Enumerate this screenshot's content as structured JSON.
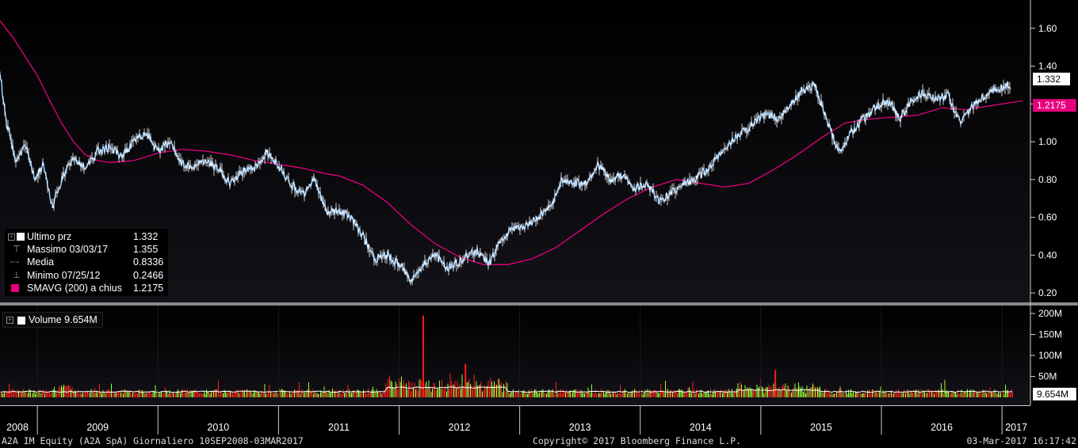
{
  "chart_data": [
    {
      "type": "line",
      "title": "",
      "ylim": [
        0.15,
        1.75
      ],
      "y_ticks": [
        "0.20",
        "0.40",
        "0.60",
        "0.80",
        "1.00",
        "1.20",
        "1.40",
        "1.60"
      ],
      "x_domain": [
        2008.69,
        2017.17
      ],
      "series": [
        {
          "name": "Ultimo prz",
          "color": "#ffffff",
          "x": [
            2008.69,
            2008.75,
            2008.82,
            2008.9,
            2008.98,
            2009.05,
            2009.12,
            2009.2,
            2009.3,
            2009.4,
            2009.5,
            2009.6,
            2009.7,
            2009.8,
            2009.9,
            2010.0,
            2010.1,
            2010.2,
            2010.3,
            2010.4,
            2010.5,
            2010.6,
            2010.7,
            2010.8,
            2010.9,
            2011.0,
            2011.1,
            2011.2,
            2011.3,
            2011.4,
            2011.5,
            2011.6,
            2011.7,
            2011.8,
            2011.9,
            2012.0,
            2012.1,
            2012.2,
            2012.3,
            2012.4,
            2012.5,
            2012.56,
            2012.65,
            2012.75,
            2012.85,
            2012.95,
            2013.05,
            2013.15,
            2013.25,
            2013.35,
            2013.45,
            2013.55,
            2013.65,
            2013.75,
            2013.85,
            2013.95,
            2014.05,
            2014.15,
            2014.25,
            2014.35,
            2014.45,
            2014.55,
            2014.65,
            2014.75,
            2014.85,
            2014.95,
            2015.05,
            2015.15,
            2015.25,
            2015.35,
            2015.45,
            2015.55,
            2015.65,
            2015.75,
            2015.85,
            2015.95,
            2016.05,
            2016.15,
            2016.25,
            2016.35,
            2016.45,
            2016.55,
            2016.65,
            2016.75,
            2016.85,
            2016.95,
            2017.05,
            2017.12,
            2017.17
          ],
          "y": [
            1.36,
            1.08,
            0.9,
            0.98,
            0.8,
            0.88,
            0.65,
            0.8,
            0.92,
            0.86,
            0.95,
            0.97,
            0.92,
            1.0,
            1.05,
            0.95,
            1.0,
            0.88,
            0.86,
            0.9,
            0.86,
            0.78,
            0.84,
            0.86,
            0.94,
            0.88,
            0.78,
            0.72,
            0.8,
            0.62,
            0.64,
            0.6,
            0.5,
            0.38,
            0.4,
            0.35,
            0.27,
            0.35,
            0.4,
            0.33,
            0.36,
            0.4,
            0.42,
            0.36,
            0.48,
            0.55,
            0.55,
            0.6,
            0.65,
            0.8,
            0.78,
            0.78,
            0.88,
            0.8,
            0.82,
            0.75,
            0.78,
            0.69,
            0.72,
            0.78,
            0.8,
            0.85,
            0.92,
            1.0,
            1.05,
            1.1,
            1.15,
            1.12,
            1.2,
            1.28,
            1.3,
            1.1,
            0.95,
            1.05,
            1.12,
            1.18,
            1.22,
            1.12,
            1.22,
            1.26,
            1.22,
            1.25,
            1.1,
            1.18,
            1.24,
            1.28,
            1.3,
            1.28,
            1.332
          ]
        },
        {
          "name": "SMAVG (200) a chius",
          "color": "#e6007e",
          "x": [
            2008.69,
            2008.8,
            2008.9,
            2009.0,
            2009.1,
            2009.2,
            2009.3,
            2009.4,
            2009.5,
            2009.6,
            2009.8,
            2010.0,
            2010.2,
            2010.4,
            2010.6,
            2010.8,
            2011.0,
            2011.2,
            2011.4,
            2011.5,
            2011.7,
            2011.9,
            2012.1,
            2012.3,
            2012.5,
            2012.7,
            2012.9,
            2013.1,
            2013.3,
            2013.5,
            2013.7,
            2013.9,
            2014.1,
            2014.3,
            2014.5,
            2014.7,
            2014.9,
            2015.1,
            2015.3,
            2015.5,
            2015.7,
            2015.9,
            2016.1,
            2016.3,
            2016.5,
            2016.7,
            2016.9,
            2017.1,
            2017.17
          ],
          "y": [
            1.64,
            1.55,
            1.45,
            1.35,
            1.22,
            1.1,
            1.0,
            0.93,
            0.9,
            0.89,
            0.9,
            0.94,
            0.96,
            0.95,
            0.93,
            0.9,
            0.88,
            0.86,
            0.83,
            0.82,
            0.77,
            0.68,
            0.56,
            0.46,
            0.39,
            0.35,
            0.35,
            0.38,
            0.44,
            0.53,
            0.62,
            0.7,
            0.76,
            0.8,
            0.78,
            0.76,
            0.78,
            0.85,
            0.93,
            1.02,
            1.1,
            1.12,
            1.13,
            1.14,
            1.18,
            1.17,
            1.19,
            1.21,
            1.2175
          ]
        }
      ],
      "right_labels": [
        {
          "text": "1.332",
          "value": 1.332,
          "bg": "#ffffff",
          "fg": "#000000"
        },
        {
          "text": "1.2175",
          "value": 1.2175,
          "bg": "#e6007e",
          "fg": "#ffffff"
        }
      ]
    },
    {
      "type": "bar",
      "title": "",
      "ylim": [
        0,
        200
      ],
      "y_ticks": [
        "50M",
        "100M",
        "150M",
        "200M"
      ],
      "y_tick_values": [
        50,
        100,
        150,
        200
      ],
      "x_domain": [
        2008.69,
        2017.17
      ],
      "series": [
        {
          "name": "Volume",
          "colors": [
            "#99ff33",
            "#ff2020"
          ],
          "peaks": [
            {
              "x": 2012.2,
              "value": 195
            },
            {
              "x": 2012.0,
              "value": 45
            },
            {
              "x": 2012.55,
              "value": 80
            },
            {
              "x": 2015.12,
              "value": 65
            }
          ]
        }
      ],
      "right_labels": [
        {
          "text": "9.654M",
          "value": 9.654,
          "bg": "#ffffff",
          "fg": "#000000"
        }
      ]
    }
  ],
  "x_axis": {
    "years": [
      "2008",
      "2009",
      "2010",
      "2011",
      "2012",
      "2013",
      "2014",
      "2015",
      "2016",
      "2017"
    ],
    "year_values": [
      2008.69,
      2009.0,
      2010.0,
      2011.0,
      2012.0,
      2013.0,
      2014.0,
      2015.0,
      2016.0,
      2017.0
    ]
  },
  "legend": {
    "items": [
      {
        "symbol": "square-white",
        "label": "Ultimo prz",
        "value": "1.332"
      },
      {
        "symbol": "high-marker",
        "label": "Massimo 03/03/17",
        "value": "1.355"
      },
      {
        "symbol": "mean-marker",
        "label": "Media",
        "value": "0.8336"
      },
      {
        "symbol": "low-marker",
        "label": "Minimo 07/25/12",
        "value": "0.2466"
      },
      {
        "symbol": "square-pink",
        "label": "SMAVG (200) a chius",
        "value": "1.2175"
      }
    ]
  },
  "volume_legend": {
    "label": "Volume",
    "value": "9.654M"
  },
  "footer": {
    "left": "A2A IM Equity (A2A SpA)  Giornaliero 10SEP2008-03MAR2017",
    "center": "Copyright© 2017 Bloomberg Finance L.P.",
    "right": "03-Mar-2017 16:17:42"
  }
}
